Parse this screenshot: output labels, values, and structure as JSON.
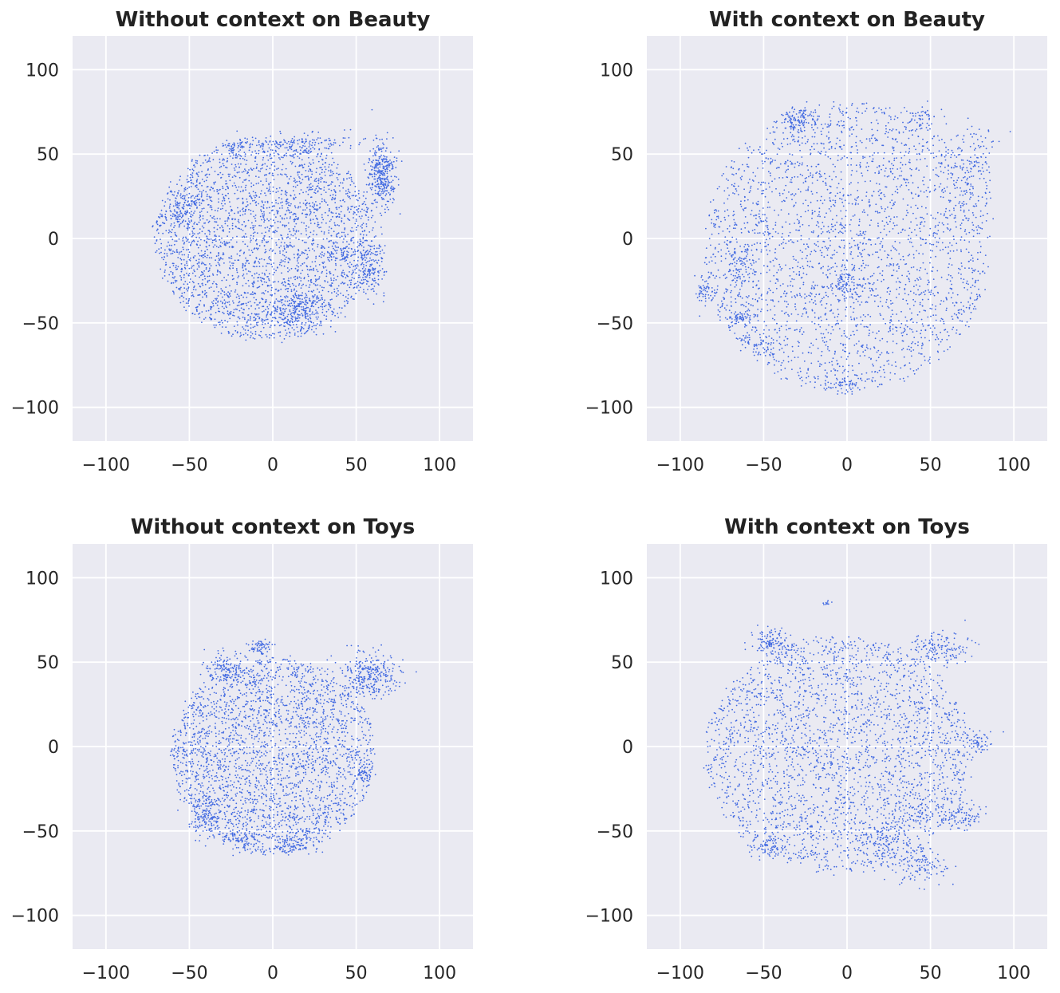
{
  "colors": {
    "points": "#4169e1",
    "background": "#eaeaf2",
    "grid": "#ffffff"
  },
  "chart_data": [
    {
      "type": "scatter",
      "title": "Without context on Beauty",
      "xlim": [
        -120,
        120
      ],
      "ylim": [
        -120,
        120
      ],
      "xticks": [
        -100,
        -50,
        0,
        50,
        100
      ],
      "yticks": [
        -100,
        -50,
        0,
        50,
        100
      ],
      "xticklabels": [
        "−100",
        "−50",
        "0",
        "50",
        "100"
      ],
      "yticklabels": [
        "−100",
        "−50",
        "0",
        "50",
        "100"
      ],
      "xlabel": "",
      "ylabel": "",
      "grid": true,
      "cloud": {
        "cx": -5,
        "cy": 0,
        "rx": 68,
        "ry": 62,
        "n": 2800,
        "seed": 11
      },
      "clusters": [
        {
          "x": 65,
          "y": 38,
          "sx": 4,
          "sy": 10,
          "n": 340
        },
        {
          "x": 58,
          "y": -15,
          "sx": 5,
          "sy": 9,
          "n": 180
        },
        {
          "x": 15,
          "y": -43,
          "sx": 9,
          "sy": 6,
          "n": 220
        },
        {
          "x": -53,
          "y": 18,
          "sx": 5,
          "sy": 5,
          "n": 90
        },
        {
          "x": 20,
          "y": 56,
          "sx": 14,
          "sy": 3,
          "n": 120
        },
        {
          "x": -23,
          "y": 55,
          "sx": 4,
          "sy": 2,
          "n": 30
        },
        {
          "x": 40,
          "y": -10,
          "sx": 4,
          "sy": 4,
          "n": 50
        }
      ]
    },
    {
      "type": "scatter",
      "title": "With context on Beauty",
      "xlim": [
        -120,
        120
      ],
      "ylim": [
        -120,
        120
      ],
      "xticks": [
        -100,
        -50,
        0,
        50,
        100
      ],
      "yticks": [
        -100,
        -50,
        0,
        50,
        100
      ],
      "xticklabels": [
        "−100",
        "−50",
        "0",
        "50",
        "100"
      ],
      "yticklabels": [
        "−100",
        "−50",
        "0",
        "50",
        "100"
      ],
      "xlabel": "",
      "ylabel": "",
      "grid": true,
      "cloud": {
        "cx": 0,
        "cy": -5,
        "rx": 88,
        "ry": 88,
        "n": 2600,
        "seed": 23
      },
      "clusters": [
        {
          "x": -30,
          "y": 70,
          "sx": 6,
          "sy": 4,
          "n": 120
        },
        {
          "x": 75,
          "y": 45,
          "sx": 8,
          "sy": 12,
          "n": 140
        },
        {
          "x": 45,
          "y": 72,
          "sx": 5,
          "sy": 4,
          "n": 50
        },
        {
          "x": -62,
          "y": -15,
          "sx": 5,
          "sy": 7,
          "n": 90
        },
        {
          "x": -85,
          "y": -32,
          "sx": 3,
          "sy": 5,
          "n": 60
        },
        {
          "x": -65,
          "y": -48,
          "sx": 5,
          "sy": 3,
          "n": 70
        },
        {
          "x": 0,
          "y": -27,
          "sx": 6,
          "sy": 6,
          "n": 90
        },
        {
          "x": 0,
          "y": -86,
          "sx": 5,
          "sy": 3,
          "n": 50
        },
        {
          "x": -60,
          "y": -60,
          "sx": 3,
          "sy": 3,
          "n": 25
        },
        {
          "x": -48,
          "y": -65,
          "sx": 3,
          "sy": 3,
          "n": 25
        }
      ]
    },
    {
      "type": "scatter",
      "title": "Without context on Toys",
      "xlim": [
        -120,
        120
      ],
      "ylim": [
        -120,
        120
      ],
      "xticks": [
        -100,
        -50,
        0,
        50,
        100
      ],
      "yticks": [
        -100,
        -50,
        0,
        50,
        100
      ],
      "xticklabels": [
        "−100",
        "−50",
        "0",
        "50",
        "100"
      ],
      "yticklabels": [
        "−100",
        "−50",
        "0",
        "50",
        "100"
      ],
      "xlabel": "",
      "ylabel": "",
      "grid": true,
      "cloud": {
        "cx": 0,
        "cy": -5,
        "rx": 63,
        "ry": 60,
        "n": 2600,
        "seed": 37
      },
      "clusters": [
        {
          "x": 58,
          "y": 42,
          "sx": 9,
          "sy": 7,
          "n": 300
        },
        {
          "x": -28,
          "y": 46,
          "sx": 7,
          "sy": 5,
          "n": 130
        },
        {
          "x": -8,
          "y": 59,
          "sx": 4,
          "sy": 2,
          "n": 60
        },
        {
          "x": -40,
          "y": -40,
          "sx": 6,
          "sy": 8,
          "n": 140
        },
        {
          "x": -20,
          "y": -55,
          "sx": 5,
          "sy": 3,
          "n": 60
        },
        {
          "x": 10,
          "y": -58,
          "sx": 8,
          "sy": 3,
          "n": 90
        },
        {
          "x": -10,
          "y": 38,
          "sx": 3,
          "sy": 3,
          "n": 30
        },
        {
          "x": 55,
          "y": -15,
          "sx": 3,
          "sy": 3,
          "n": 40
        }
      ]
    },
    {
      "type": "scatter",
      "title": "With context on Toys",
      "xlim": [
        -120,
        120
      ],
      "ylim": [
        -120,
        120
      ],
      "xticks": [
        -100,
        -50,
        0,
        50,
        100
      ],
      "yticks": [
        -100,
        -50,
        0,
        50,
        100
      ],
      "xticklabels": [
        "−100",
        "−50",
        "0",
        "50",
        "100"
      ],
      "yticklabels": [
        "−100",
        "−50",
        "0",
        "50",
        "100"
      ],
      "xlabel": "",
      "ylabel": "",
      "grid": true,
      "cloud": {
        "cx": -5,
        "cy": -5,
        "rx": 82,
        "ry": 72,
        "n": 2700,
        "seed": 53
      },
      "clusters": [
        {
          "x": -45,
          "y": 62,
          "sx": 6,
          "sy": 4,
          "n": 120
        },
        {
          "x": 55,
          "y": 58,
          "sx": 10,
          "sy": 5,
          "n": 150
        },
        {
          "x": 80,
          "y": 3,
          "sx": 4,
          "sy": 4,
          "n": 60
        },
        {
          "x": 70,
          "y": -42,
          "sx": 6,
          "sy": 4,
          "n": 90
        },
        {
          "x": 45,
          "y": -70,
          "sx": 8,
          "sy": 6,
          "n": 120
        },
        {
          "x": 25,
          "y": -55,
          "sx": 5,
          "sy": 8,
          "n": 80
        },
        {
          "x": -48,
          "y": -60,
          "sx": 5,
          "sy": 3,
          "n": 60
        },
        {
          "x": -12,
          "y": 85,
          "sx": 1.5,
          "sy": 1,
          "n": 10
        },
        {
          "x": 45,
          "y": -40,
          "sx": 3,
          "sy": 3,
          "n": 30
        }
      ]
    }
  ]
}
